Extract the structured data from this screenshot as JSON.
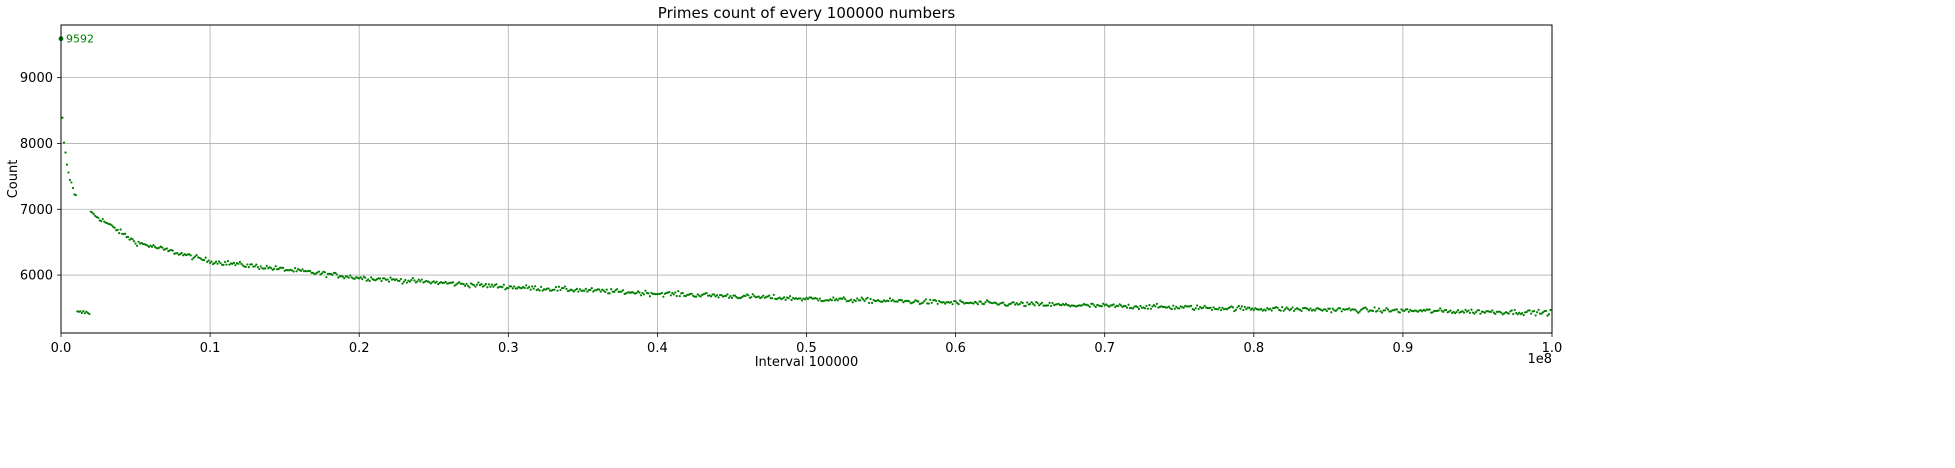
{
  "chart_data": {
    "type": "scatter",
    "title": "Primes count of every 100000 numbers",
    "xlabel": "Interval 100000",
    "ylabel": "Count",
    "x_offset_label": "1e8",
    "xlim": [
      0,
      1.0
    ],
    "ylim": [
      5120,
      9800
    ],
    "x_ticks": [
      0.0,
      0.1,
      0.2,
      0.3,
      0.4,
      0.5,
      0.6,
      0.7,
      0.8,
      0.9,
      1.0
    ],
    "x_tick_labels": [
      "0.0",
      "0.1",
      "0.2",
      "0.3",
      "0.4",
      "0.5",
      "0.6",
      "0.7",
      "0.8",
      "0.9",
      "1.0"
    ],
    "y_ticks": [
      6000,
      7000,
      8000,
      9000
    ],
    "y_tick_labels": [
      "6000",
      "7000",
      "8000",
      "9000"
    ],
    "grid": true,
    "marker_color": "#008000",
    "n_points": 1000,
    "x_step": 0.001,
    "annotation": {
      "label": "9592",
      "x": 0.0,
      "y": 9592
    },
    "first_points": [
      {
        "x": 0.0,
        "y": 9592
      },
      {
        "x": 0.001,
        "y": 8392
      },
      {
        "x": 0.002,
        "y": 8013
      },
      {
        "x": 0.003,
        "y": 7863
      },
      {
        "x": 0.004,
        "y": 7678
      },
      {
        "x": 0.005,
        "y": 7560
      },
      {
        "x": 0.006,
        "y": 7445
      },
      {
        "x": 0.007,
        "y": 7408
      },
      {
        "x": 0.008,
        "y": 7323
      },
      {
        "x": 0.009,
        "y": 7224
      },
      {
        "x": 0.01,
        "y": 7216
      }
    ],
    "trend_samples": [
      {
        "x": 0.02,
        "y": 6950
      },
      {
        "x": 0.05,
        "y": 6500
      },
      {
        "x": 0.1,
        "y": 6210
      },
      {
        "x": 0.2,
        "y": 5960
      },
      {
        "x": 0.3,
        "y": 5820
      },
      {
        "x": 0.4,
        "y": 5720
      },
      {
        "x": 0.5,
        "y": 5640
      },
      {
        "x": 0.6,
        "y": 5580
      },
      {
        "x": 0.7,
        "y": 5530
      },
      {
        "x": 0.8,
        "y": 5490
      },
      {
        "x": 0.9,
        "y": 5460
      },
      {
        "x": 1.0,
        "y": 5430
      }
    ]
  }
}
